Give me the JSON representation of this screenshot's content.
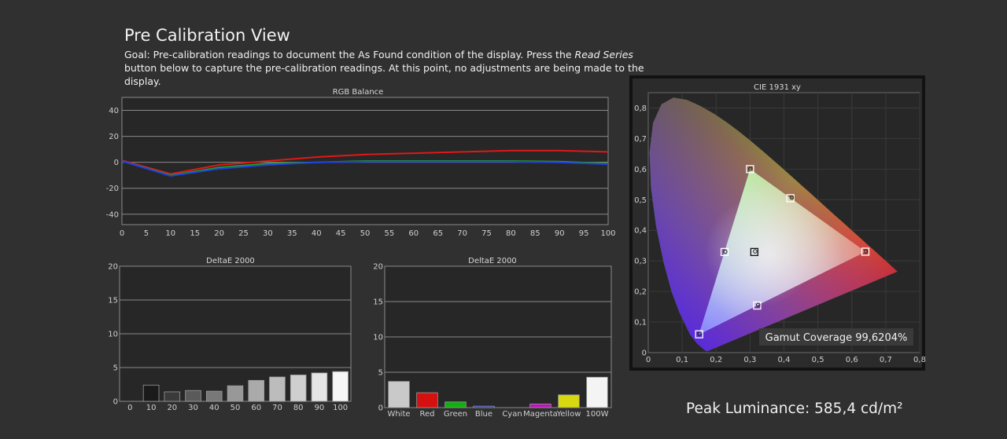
{
  "page": {
    "title": "Pre Calibration View",
    "goal_prefix": "Goal: Pre-calibration readings to document the As Found condition of the display. Press the ",
    "goal_button": "Read Series",
    "goal_suffix": " button below to capture the pre-calibration readings. At this point, no adjustments are being made to the display.",
    "peak_luminance": "Peak Luminance: 585,4 cd/m²"
  },
  "chart_data": [
    {
      "type": "line",
      "title": "RGB Balance",
      "x": [
        0,
        10,
        20,
        30,
        40,
        50,
        60,
        70,
        80,
        90,
        100
      ],
      "xticks": [
        0,
        5,
        10,
        15,
        20,
        25,
        30,
        35,
        40,
        45,
        50,
        55,
        60,
        65,
        70,
        75,
        80,
        85,
        90,
        95,
        100
      ],
      "yticks": [
        40,
        20,
        0,
        -20,
        -40
      ],
      "ylim": [
        -48,
        50
      ],
      "xlim": [
        0,
        100
      ],
      "grid": true,
      "series": [
        {
          "color": "#e01818",
          "values": [
            1.5,
            -9,
            -2,
            1,
            4,
            6,
            7,
            8,
            9,
            9,
            8
          ]
        },
        {
          "color": "#20a020",
          "values": [
            1,
            -10,
            -4,
            -1,
            0,
            1,
            1,
            1,
            1,
            0.5,
            -1
          ]
        },
        {
          "color": "#2040e0",
          "values": [
            1,
            -10.5,
            -5,
            -2,
            0,
            0.5,
            0.5,
            0.5,
            0.5,
            0,
            -1.5
          ]
        }
      ]
    },
    {
      "type": "bar",
      "title": "DeltaE 2000",
      "categories": [
        "0",
        "10",
        "20",
        "30",
        "40",
        "50",
        "60",
        "70",
        "80",
        "90",
        "100"
      ],
      "values": [
        0,
        2.4,
        1.4,
        1.6,
        1.5,
        2.3,
        3.1,
        3.6,
        3.9,
        4.2,
        4.4
      ],
      "colors": [
        "#cccccc",
        "#1a1a1a",
        "#3a3a3a",
        "#5a5a5a",
        "#787878",
        "#989898",
        "#aaaaaa",
        "#bcbcbc",
        "#cfcfcf",
        "#e4e4e4",
        "#f6f6f6"
      ],
      "ylim": [
        0,
        20
      ],
      "yticks": [
        20,
        15,
        10,
        5,
        0
      ],
      "grid": true
    },
    {
      "type": "bar",
      "title": "DeltaE 2000",
      "categories": [
        "White",
        "Red",
        "Green",
        "Blue",
        "Cyan",
        "Magenta",
        "Yellow",
        "100W"
      ],
      "values": [
        3.7,
        2.1,
        0.8,
        0.2,
        0.0,
        0.5,
        1.8,
        4.3
      ],
      "colors": [
        "#c9c9c9",
        "#d41010",
        "#10b010",
        "#1020c8",
        "#10b0b0",
        "#c010c0",
        "#d8d810",
        "#f4f4f4"
      ],
      "ylim": [
        0,
        20
      ],
      "yticks": [
        20,
        15,
        10,
        5,
        0
      ],
      "grid": true
    },
    {
      "type": "scatter",
      "title": "CIE 1931 xy",
      "xlim": [
        0,
        0.8
      ],
      "ylim": [
        0,
        0.85
      ],
      "xticks": [
        "0",
        "0,1",
        "0,2",
        "0,3",
        "0,4",
        "0,5",
        "0,6",
        "0,7",
        "0,8"
      ],
      "yticks": [
        "0",
        "0,1",
        "0,2",
        "0,3",
        "0,4",
        "0,5",
        "0,6",
        "0,7",
        "0,8"
      ],
      "gamut_coverage": "Gamut Coverage 99,6204%",
      "targets": [
        {
          "name": "Red",
          "x": 0.64,
          "y": 0.33
        },
        {
          "name": "Green",
          "x": 0.3,
          "y": 0.6
        },
        {
          "name": "Blue",
          "x": 0.15,
          "y": 0.06
        },
        {
          "name": "Cyan",
          "x": 0.225,
          "y": 0.329
        },
        {
          "name": "Magenta",
          "x": 0.321,
          "y": 0.154
        },
        {
          "name": "Yellow",
          "x": 0.419,
          "y": 0.505
        },
        {
          "name": "White",
          "x": 0.3127,
          "y": 0.329
        }
      ],
      "measured": [
        {
          "name": "Red",
          "x": 0.641,
          "y": 0.331
        },
        {
          "name": "Green",
          "x": 0.301,
          "y": 0.601
        },
        {
          "name": "Blue",
          "x": 0.151,
          "y": 0.061
        },
        {
          "name": "Cyan",
          "x": 0.227,
          "y": 0.33
        },
        {
          "name": "Magenta",
          "x": 0.324,
          "y": 0.156
        },
        {
          "name": "Yellow",
          "x": 0.423,
          "y": 0.507
        },
        {
          "name": "White",
          "x": 0.315,
          "y": 0.331
        }
      ]
    }
  ]
}
